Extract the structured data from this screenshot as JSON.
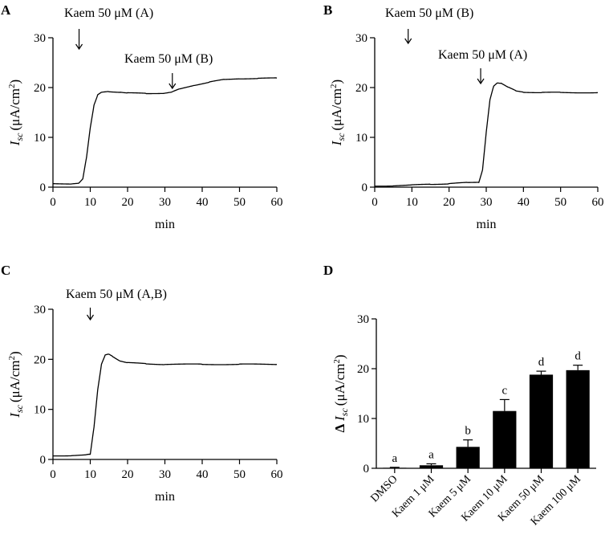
{
  "figure": {
    "panels": [
      "A",
      "B",
      "C",
      "D"
    ]
  },
  "chart_data": [
    {
      "panel": "A",
      "type": "line",
      "xlabel": "min",
      "ylabel_symbol": "I",
      "ylabel_sub": "sc",
      "ylabel_unit": "(μA/cm",
      "ylabel_sup": "2",
      "ylabel_close": ")",
      "xlim": [
        0,
        60
      ],
      "ylim": [
        0,
        30
      ],
      "xticks": [
        0,
        10,
        20,
        30,
        40,
        50,
        60
      ],
      "yticks": [
        0,
        10,
        20,
        30
      ],
      "series": [
        {
          "name": "Isc",
          "points": [
            [
              0,
              0.7
            ],
            [
              5,
              0.7
            ],
            [
              7,
              0.8
            ],
            [
              8,
              1.6
            ],
            [
              9,
              6
            ],
            [
              10,
              12
            ],
            [
              11,
              16.5
            ],
            [
              12,
              18.5
            ],
            [
              13,
              19
            ],
            [
              15,
              19.2
            ],
            [
              18,
              19.1
            ],
            [
              20,
              18.9
            ],
            [
              25,
              18.8
            ],
            [
              30,
              18.9
            ],
            [
              32,
              19.1
            ],
            [
              34,
              19.7
            ],
            [
              38,
              20.5
            ],
            [
              42,
              21.1
            ],
            [
              46,
              21.6
            ],
            [
              50,
              21.8
            ],
            [
              55,
              21.8
            ],
            [
              60,
              21.9
            ]
          ]
        }
      ],
      "annotations": [
        {
          "text": "Kaem 50 μM (A)",
          "x": 7
        },
        {
          "text": "Kaem 50 μM (B)",
          "x": 32
        }
      ]
    },
    {
      "panel": "B",
      "type": "line",
      "xlabel": "min",
      "ylabel_symbol": "I",
      "ylabel_sub": "sc",
      "ylabel_unit": "(μA/cm",
      "ylabel_sup": "2",
      "ylabel_close": ")",
      "xlim": [
        0,
        60
      ],
      "ylim": [
        0,
        30
      ],
      "xticks": [
        0,
        10,
        20,
        30,
        40,
        50,
        60
      ],
      "yticks": [
        0,
        10,
        20,
        30
      ],
      "series": [
        {
          "name": "Isc",
          "points": [
            [
              0,
              0.2
            ],
            [
              5,
              0.3
            ],
            [
              10,
              0.4
            ],
            [
              15,
              0.6
            ],
            [
              20,
              0.7
            ],
            [
              25,
              0.9
            ],
            [
              28,
              1.0
            ],
            [
              29,
              3.5
            ],
            [
              30,
              11
            ],
            [
              31,
              17.5
            ],
            [
              32,
              20.3
            ],
            [
              33,
              21
            ],
            [
              34,
              20.9
            ],
            [
              36,
              20
            ],
            [
              38,
              19.3
            ],
            [
              40,
              19.1
            ],
            [
              45,
              19
            ],
            [
              50,
              19
            ],
            [
              60,
              19
            ]
          ]
        }
      ],
      "annotations": [
        {
          "text": "Kaem 50 μM (B)",
          "x": 9
        },
        {
          "text": "Kaem 50 μM (A)",
          "x": 28.5
        }
      ]
    },
    {
      "panel": "C",
      "type": "line",
      "xlabel": "min",
      "ylabel_symbol": "I",
      "ylabel_sub": "sc",
      "ylabel_unit": "(μA/cm",
      "ylabel_sup": "2",
      "ylabel_close": ")",
      "xlim": [
        0,
        60
      ],
      "ylim": [
        0,
        30
      ],
      "xticks": [
        0,
        10,
        20,
        30,
        40,
        50,
        60
      ],
      "yticks": [
        0,
        10,
        20,
        30
      ],
      "series": [
        {
          "name": "Isc",
          "points": [
            [
              0,
              0.7
            ],
            [
              5,
              0.8
            ],
            [
              9,
              0.9
            ],
            [
              10,
              1.0
            ],
            [
              11,
              6.5
            ],
            [
              12,
              14
            ],
            [
              13,
              19
            ],
            [
              14,
              20.8
            ],
            [
              15,
              21
            ],
            [
              16,
              20.6
            ],
            [
              18,
              19.7
            ],
            [
              20,
              19.3
            ],
            [
              25,
              19.1
            ],
            [
              30,
              19
            ],
            [
              40,
              19
            ],
            [
              50,
              19
            ],
            [
              60,
              19
            ]
          ]
        }
      ],
      "annotations": [
        {
          "text": "Kaem 50 μM (A,B)",
          "x": 10
        }
      ]
    },
    {
      "panel": "D",
      "type": "bar",
      "ylabel_prefix": "Δ",
      "ylabel_symbol": "I",
      "ylabel_sub": "sc",
      "ylabel_unit": "(μA/cm",
      "ylabel_sup": "2",
      "ylabel_close": ")",
      "ylim": [
        0,
        30
      ],
      "yticks": [
        0,
        10,
        20,
        30
      ],
      "categories": [
        "DMSO",
        "Kaem 1 μM",
        "Kaem 5 μM",
        "Kaem 10 μM",
        "Kaem 50 μM",
        "Kaem 100 μM"
      ],
      "values": [
        0.1,
        0.6,
        4.3,
        11.5,
        18.8,
        19.7
      ],
      "errors": [
        0.1,
        0.3,
        1.4,
        2.3,
        0.7,
        1.0
      ],
      "groups": [
        "a",
        "a",
        "b",
        "c",
        "d",
        "d"
      ]
    }
  ]
}
